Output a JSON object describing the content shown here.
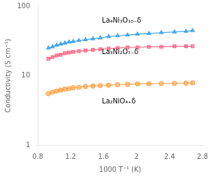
{
  "chart_data": {
    "type": "line",
    "xlabel": "1000 T⁻¹ (K)",
    "ylabel": "Conductivity (S cm⁻¹)",
    "log": "y",
    "grid": false,
    "xlim": [
      0.8,
      2.8
    ],
    "ylim": [
      1,
      100
    ],
    "xticks": [
      0.8,
      1.2,
      1.6,
      2,
      2.4,
      2.8
    ],
    "yticks": [
      1,
      10,
      100
    ],
    "series": [
      {
        "marker": "triangle",
        "x": [
          0.93,
          0.98,
          1.03,
          1.08,
          1.13,
          1.18,
          1.23,
          1.3,
          1.38,
          1.47,
          1.56,
          1.66,
          1.77,
          1.89,
          2.01,
          2.15,
          2.3,
          2.46,
          2.6,
          2.68
        ],
        "values": [
          25.0,
          26.0,
          27.5,
          28.5,
          29.5,
          30.5,
          31.0,
          32.0,
          33.0,
          34.0,
          35.0,
          36.5,
          37.5,
          38.5,
          39.5,
          40.5,
          41.5,
          42.5,
          43.5,
          44.5
        ]
      },
      {
        "marker": "square",
        "x": [
          0.93,
          0.98,
          1.03,
          1.08,
          1.13,
          1.18,
          1.23,
          1.3,
          1.38,
          1.47,
          1.56,
          1.66,
          1.77,
          1.89,
          2.01,
          2.15,
          2.3,
          2.46,
          2.6,
          2.68
        ],
        "values": [
          17.5,
          18.5,
          19.5,
          20.0,
          21.0,
          21.5,
          22.0,
          22.5,
          23.0,
          23.5,
          24.0,
          24.5,
          25.0,
          25.5,
          25.5,
          26.0,
          26.0,
          26.5,
          26.5,
          26.5
        ]
      },
      {
        "marker": "circle",
        "x": [
          0.93,
          0.98,
          1.03,
          1.08,
          1.13,
          1.18,
          1.23,
          1.3,
          1.38,
          1.47,
          1.56,
          1.66,
          1.77,
          1.89,
          2.01,
          2.15,
          2.3,
          2.46,
          2.6,
          2.68
        ],
        "values": [
          5.5,
          5.8,
          6.0,
          6.2,
          6.4,
          6.5,
          6.7,
          6.8,
          7.0,
          7.1,
          7.2,
          7.3,
          7.4,
          7.5,
          7.6,
          7.65,
          7.7,
          7.75,
          7.8,
          7.9
        ]
      }
    ],
    "annotations": [
      {
        "text": "La₄Ni₃O₁₀₋δ",
        "x": 1.58,
        "y": 55
      },
      {
        "text": "La₃Ni₂O₇₋δ",
        "x": 1.58,
        "y": 19.5
      },
      {
        "text": "La₂NiO₄₊δ",
        "x": 1.58,
        "y": 3.8
      }
    ]
  }
}
